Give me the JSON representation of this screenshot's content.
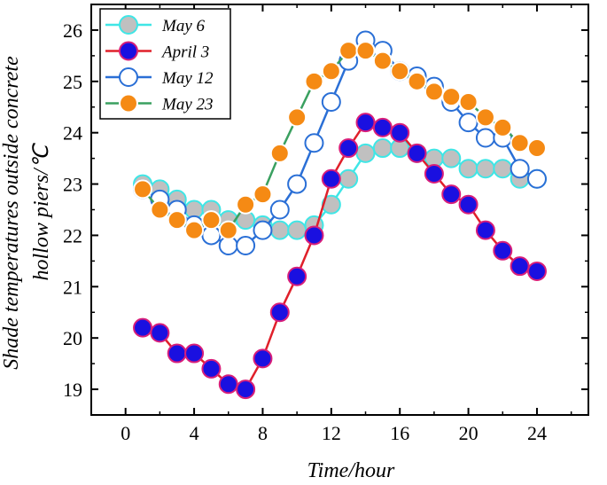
{
  "chart_data": {
    "type": "line",
    "title": "",
    "xlabel": "Time/hour",
    "ylabel_line1": "Shade temperatures outside concrete",
    "ylabel_line2": "hollow piers/℃",
    "xlim": [
      -2,
      27
    ],
    "ylim": [
      18.5,
      26.5
    ],
    "xticks": [
      0,
      4,
      8,
      12,
      16,
      20,
      24
    ],
    "yticks": [
      19,
      20,
      21,
      22,
      23,
      24,
      25,
      26
    ],
    "grid": false,
    "legend_position": "top-left",
    "x": [
      1,
      2,
      3,
      4,
      5,
      6,
      7,
      8,
      9,
      10,
      11,
      12,
      13,
      14,
      15,
      16,
      17,
      18,
      19,
      20,
      21,
      22,
      23,
      24
    ],
    "series": [
      {
        "name": "May 6",
        "line_color": "#3fe6e6",
        "marker_fill": "#c0c0c0",
        "marker_edge": "#3fe6e6",
        "values": [
          23.0,
          22.9,
          22.7,
          22.5,
          22.5,
          22.3,
          22.3,
          22.2,
          22.1,
          22.1,
          22.2,
          22.6,
          23.1,
          23.6,
          23.7,
          23.7,
          23.6,
          23.5,
          23.5,
          23.3,
          23.3,
          23.3,
          23.1,
          23.1
        ]
      },
      {
        "name": "April 3",
        "line_color": "#e0202a",
        "marker_fill": "#1a10e0",
        "marker_edge": "#d81e7a",
        "values": [
          20.2,
          20.1,
          19.7,
          19.7,
          19.4,
          19.1,
          19.0,
          19.6,
          20.5,
          21.2,
          22.0,
          23.1,
          23.7,
          24.2,
          24.1,
          24.0,
          23.6,
          23.2,
          22.8,
          22.6,
          22.1,
          21.7,
          21.4,
          21.3
        ]
      },
      {
        "name": "May 12",
        "line_color": "#2a6fd6",
        "marker_fill": "#ffffff",
        "marker_edge": "#2a6fd6",
        "values": [
          22.9,
          22.7,
          22.5,
          22.2,
          22.0,
          21.8,
          21.8,
          22.1,
          22.5,
          23.0,
          23.8,
          24.6,
          25.4,
          25.8,
          25.6,
          25.2,
          25.1,
          24.9,
          24.6,
          24.2,
          23.9,
          23.9,
          23.3,
          23.1
        ]
      },
      {
        "name": "May 23",
        "line_color": "#3aa060",
        "marker_fill": "#f58a14",
        "marker_edge": "#ffffff",
        "values": [
          22.9,
          22.5,
          22.3,
          22.1,
          22.3,
          22.1,
          22.6,
          22.8,
          23.6,
          24.3,
          25.0,
          25.2,
          25.6,
          25.6,
          25.4,
          25.2,
          25.0,
          24.8,
          24.7,
          24.6,
          24.3,
          24.1,
          23.8,
          23.7
        ]
      }
    ]
  }
}
